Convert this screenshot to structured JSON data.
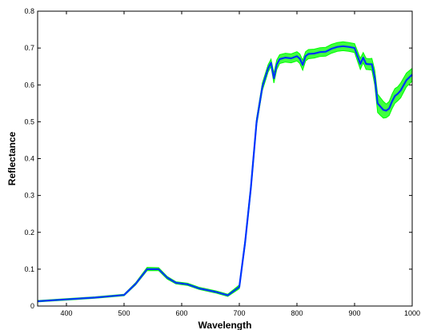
{
  "chart_data": {
    "type": "line",
    "title": "",
    "xlabel": "Wavelength",
    "ylabel": "Reflectance",
    "xlim": [
      350,
      1000
    ],
    "ylim": [
      0,
      0.8
    ],
    "x_ticks": [
      400,
      500,
      600,
      700,
      800,
      900,
      1000
    ],
    "y_ticks": [
      0,
      0.1,
      0.2,
      0.3,
      0.4,
      0.5,
      0.6,
      0.7,
      0.8
    ],
    "grid": false,
    "legend": "none",
    "series": [
      {
        "color": "#00ff00",
        "role": "individual spectra envelope",
        "x": [
          350,
          400,
          450,
          500,
          520,
          540,
          560,
          575,
          590,
          610,
          630,
          660,
          680,
          700,
          710,
          720,
          730,
          740,
          750,
          755,
          760,
          765,
          770,
          780,
          790,
          800,
          805,
          810,
          815,
          820,
          830,
          840,
          850,
          860,
          870,
          880,
          890,
          900,
          910,
          915,
          920,
          925,
          930,
          935,
          940,
          945,
          950,
          955,
          960,
          965,
          970,
          975,
          980,
          990,
          1000
        ],
        "upper": [
          0.015,
          0.02,
          0.025,
          0.032,
          0.063,
          0.105,
          0.104,
          0.08,
          0.066,
          0.062,
          0.051,
          0.041,
          0.032,
          0.057,
          0.18,
          0.33,
          0.51,
          0.605,
          0.655,
          0.67,
          0.632,
          0.668,
          0.682,
          0.686,
          0.684,
          0.69,
          0.684,
          0.667,
          0.69,
          0.696,
          0.697,
          0.701,
          0.702,
          0.71,
          0.715,
          0.717,
          0.715,
          0.712,
          0.672,
          0.688,
          0.672,
          0.671,
          0.672,
          0.64,
          0.575,
          0.565,
          0.555,
          0.548,
          0.555,
          0.575,
          0.59,
          0.595,
          0.605,
          0.632,
          0.645
        ],
        "lower": [
          0.011,
          0.016,
          0.021,
          0.028,
          0.057,
          0.096,
          0.096,
          0.073,
          0.06,
          0.056,
          0.045,
          0.035,
          0.026,
          0.047,
          0.165,
          0.31,
          0.49,
          0.585,
          0.635,
          0.65,
          0.605,
          0.642,
          0.658,
          0.662,
          0.66,
          0.665,
          0.658,
          0.64,
          0.665,
          0.671,
          0.673,
          0.677,
          0.678,
          0.686,
          0.691,
          0.693,
          0.691,
          0.688,
          0.642,
          0.66,
          0.642,
          0.641,
          0.64,
          0.6,
          0.525,
          0.517,
          0.51,
          0.511,
          0.517,
          0.535,
          0.55,
          0.557,
          0.565,
          0.595,
          0.61
        ]
      },
      {
        "color": "#0033ff",
        "role": "mean spectrum",
        "x": [
          350,
          400,
          450,
          500,
          520,
          540,
          560,
          575,
          590,
          610,
          630,
          660,
          680,
          700,
          710,
          720,
          730,
          740,
          750,
          755,
          760,
          765,
          770,
          780,
          790,
          800,
          805,
          810,
          815,
          820,
          830,
          840,
          850,
          860,
          870,
          880,
          890,
          900,
          910,
          915,
          920,
          925,
          930,
          935,
          940,
          945,
          950,
          955,
          960,
          965,
          970,
          975,
          980,
          990,
          1000
        ],
        "values": [
          0.013,
          0.018,
          0.023,
          0.03,
          0.06,
          0.1,
          0.1,
          0.077,
          0.063,
          0.059,
          0.048,
          0.038,
          0.029,
          0.052,
          0.172,
          0.32,
          0.5,
          0.595,
          0.645,
          0.66,
          0.618,
          0.655,
          0.67,
          0.674,
          0.672,
          0.678,
          0.671,
          0.654,
          0.678,
          0.684,
          0.685,
          0.689,
          0.69,
          0.698,
          0.703,
          0.705,
          0.703,
          0.7,
          0.657,
          0.674,
          0.657,
          0.656,
          0.656,
          0.62,
          0.55,
          0.541,
          0.532,
          0.53,
          0.536,
          0.555,
          0.57,
          0.576,
          0.585,
          0.613,
          0.628
        ]
      }
    ]
  }
}
